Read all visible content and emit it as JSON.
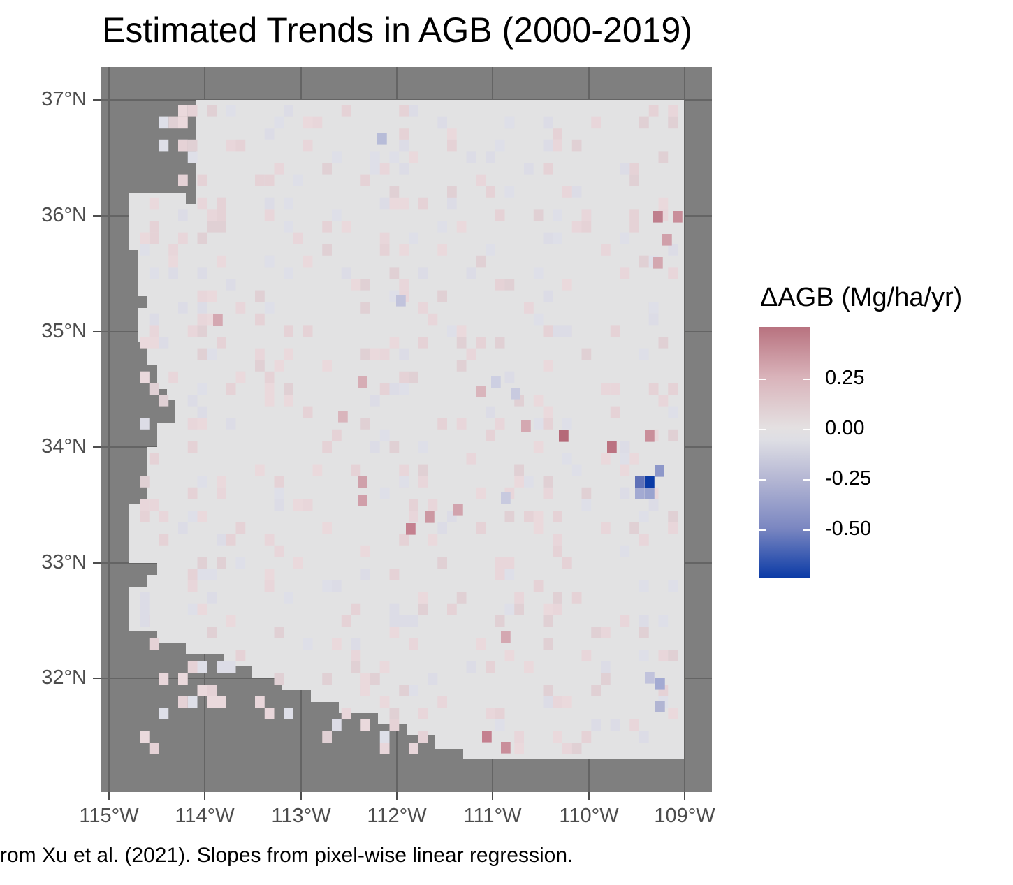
{
  "map": {
    "title": "Estimated Trends in AGB (2000-2019)",
    "caption": "rom Xu et al. (2021). Slopes from pixel-wise linear regression.",
    "lat_ticks": [
      "37°N",
      "36°N",
      "35°N",
      "34°N",
      "33°N",
      "32°N"
    ],
    "lon_ticks": [
      "115°W",
      "114°W",
      "113°W",
      "112°W",
      "111°W",
      "110°W",
      "109°W"
    ],
    "background_color": "#7f7f7f",
    "region_fill": "#e2e2e3",
    "legend": {
      "title": "ΔAGB (Mg/ha/yr)",
      "labels": [
        "0.25",
        "0.00",
        "-0.25",
        "-0.50"
      ],
      "high_color": "#b8727f",
      "mid_color": "#e2e2e3",
      "low_color": "#0a3aa6"
    }
  }
}
